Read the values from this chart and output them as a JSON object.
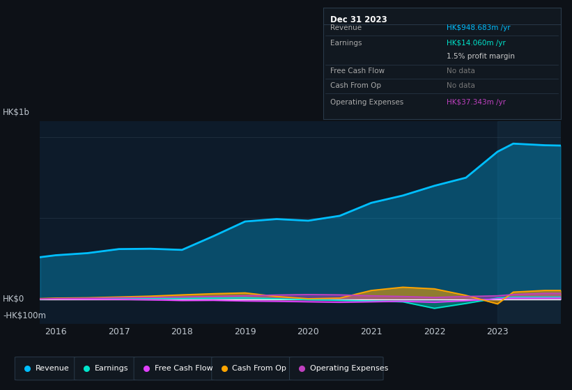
{
  "background_color": "#0d1117",
  "plot_bg_color": "#0d1b2a",
  "grid_color": "#1e2d3d",
  "text_color": "#c0c8d0",
  "years": [
    2015.75,
    2016,
    2016.5,
    2017,
    2017.5,
    2018,
    2018.5,
    2019,
    2019.5,
    2020,
    2020.5,
    2021,
    2021.5,
    2022,
    2022.5,
    2023,
    2023.25,
    2023.75,
    2024.0
  ],
  "revenue": [
    260,
    272,
    285,
    310,
    312,
    305,
    390,
    480,
    495,
    485,
    515,
    595,
    640,
    700,
    750,
    910,
    960,
    950,
    948
  ],
  "earnings": [
    2,
    4,
    6,
    8,
    7,
    6,
    8,
    10,
    4,
    -2,
    -6,
    -10,
    -15,
    -55,
    -25,
    8,
    14,
    14,
    14
  ],
  "free_cash_flow": [
    2,
    2,
    1,
    0,
    -3,
    -7,
    -6,
    -10,
    -12,
    -15,
    -18,
    -15,
    -12,
    -18,
    -8,
    3,
    8,
    8,
    8
  ],
  "cash_from_op": [
    5,
    8,
    10,
    15,
    20,
    28,
    35,
    40,
    18,
    4,
    8,
    55,
    75,
    65,
    25,
    -28,
    45,
    55,
    55
  ],
  "operating_expenses": [
    3,
    5,
    7,
    10,
    12,
    15,
    18,
    22,
    27,
    30,
    28,
    22,
    18,
    12,
    18,
    22,
    30,
    37,
    37
  ],
  "revenue_color": "#00bfff",
  "earnings_color": "#00e5cc",
  "free_cash_flow_color": "#e040fb",
  "cash_from_op_color": "#ffa500",
  "operating_expenses_color": "#bf40bf",
  "ylabel_top": "HK$1b",
  "ylabel_zero": "HK$0",
  "ylabel_neg": "-HK$100m",
  "x_ticks": [
    2016,
    2017,
    2018,
    2019,
    2020,
    2021,
    2022,
    2023
  ],
  "ylim_min": -150,
  "ylim_max": 1100,
  "tooltip_title": "Dec 31 2023",
  "tooltip_rows": [
    [
      "Revenue",
      "HK$948.683m /yr",
      "#00bfff",
      true
    ],
    [
      "Earnings",
      "HK$14.060m /yr",
      "#00e5cc",
      true
    ],
    [
      "",
      "1.5% profit margin",
      "#cccccc",
      false
    ],
    [
      "Free Cash Flow",
      "No data",
      "#666666",
      false
    ],
    [
      "Cash From Op",
      "No data",
      "#666666",
      false
    ],
    [
      "Operating Expenses",
      "HK$37.343m /yr",
      "#bf40bf",
      true
    ]
  ],
  "legend_items": [
    [
      "Revenue",
      "#00bfff"
    ],
    [
      "Earnings",
      "#00e5cc"
    ],
    [
      "Free Cash Flow",
      "#e040fb"
    ],
    [
      "Cash From Op",
      "#ffa500"
    ],
    [
      "Operating Expenses",
      "#bf40bf"
    ]
  ]
}
